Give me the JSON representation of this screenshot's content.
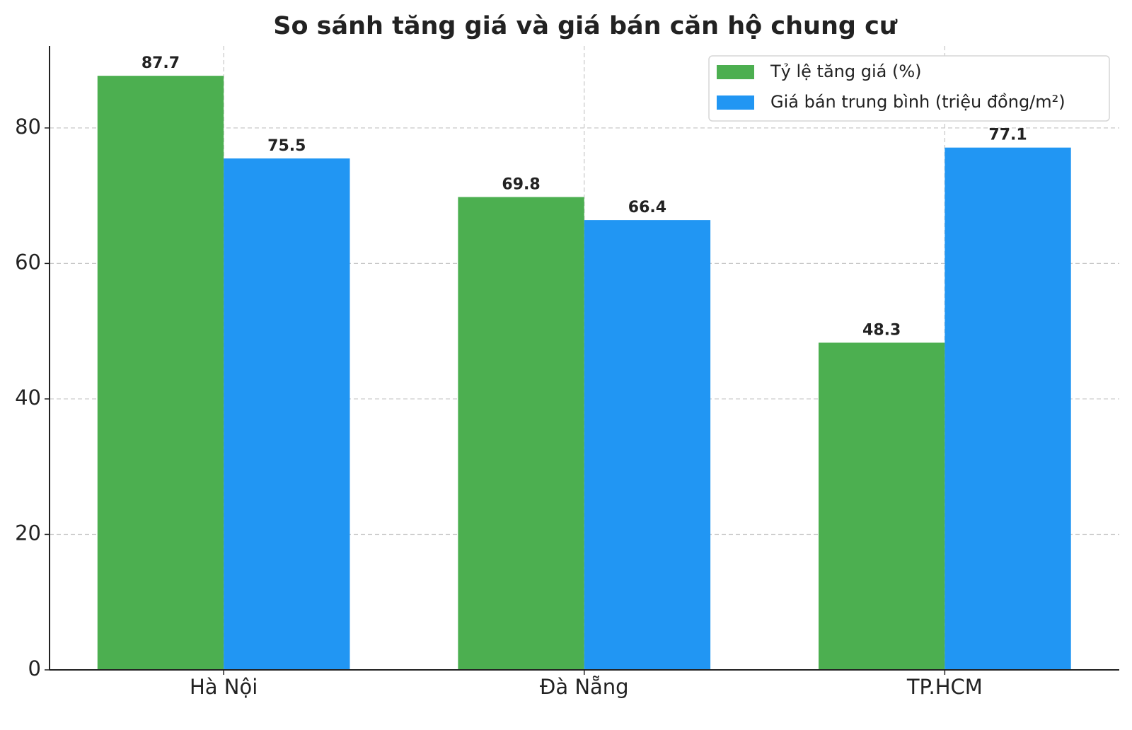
{
  "chart_data": {
    "type": "bar",
    "title": "So sánh tăng giá và giá bán căn hộ chung cư",
    "categories": [
      "Hà Nội",
      "Đà Nẵng",
      "TP.HCM"
    ],
    "series": [
      {
        "name": "Tỷ lệ tăng giá (%)",
        "color": "#4caf50",
        "values": [
          87.7,
          69.8,
          48.3
        ]
      },
      {
        "name": "Giá bán trung bình (triệu đồng/m²)",
        "color": "#2196f3",
        "values": [
          75.5,
          66.4,
          77.1
        ]
      }
    ],
    "ylim": [
      0,
      92.1
    ],
    "yticks": [
      0,
      20,
      40,
      60,
      80
    ],
    "grid": true,
    "legend": "upper right"
  }
}
